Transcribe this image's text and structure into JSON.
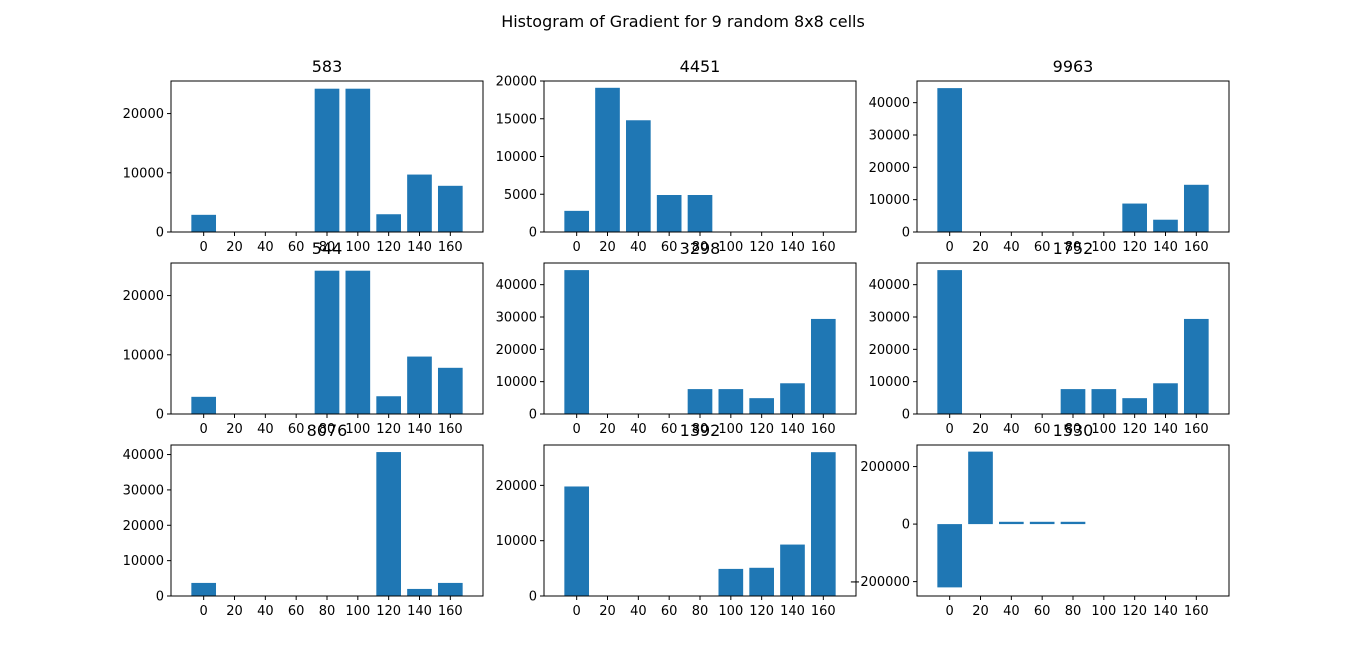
{
  "figure": {
    "title": "Histogram of Gradient for 9 random 8x8 cells",
    "bar_color": "#1f77b4"
  },
  "chart_data": [
    {
      "type": "bar",
      "title": "583",
      "categories": [
        "0",
        "20",
        "40",
        "60",
        "80",
        "100",
        "120",
        "140",
        "160"
      ],
      "x": [
        0,
        20,
        40,
        60,
        80,
        100,
        120,
        140,
        160
      ],
      "values": [
        2900,
        0,
        0,
        0,
        24200,
        24200,
        3000,
        9700,
        7800
      ],
      "ylim": [
        0,
        25500
      ],
      "yticks": [
        0,
        10000,
        20000
      ],
      "xticks": [
        0,
        20,
        40,
        60,
        80,
        100,
        120,
        140,
        160
      ],
      "xlabel": "",
      "ylabel": ""
    },
    {
      "type": "bar",
      "title": "4451",
      "categories": [
        "0",
        "20",
        "40",
        "60",
        "80",
        "100",
        "120",
        "140",
        "160"
      ],
      "x": [
        0,
        20,
        40,
        60,
        80,
        100,
        120,
        140,
        160
      ],
      "values": [
        2800,
        19100,
        14800,
        4900,
        4900,
        0,
        0,
        0,
        0
      ],
      "ylim": [
        0,
        20000
      ],
      "yticks": [
        0,
        5000,
        10000,
        15000,
        20000
      ],
      "xticks": [
        0,
        20,
        40,
        60,
        80,
        100,
        120,
        140,
        160
      ],
      "xlabel": "",
      "ylabel": ""
    },
    {
      "type": "bar",
      "title": "9963",
      "categories": [
        "0",
        "20",
        "40",
        "60",
        "80",
        "100",
        "120",
        "140",
        "160"
      ],
      "x": [
        0,
        20,
        40,
        60,
        80,
        100,
        120,
        140,
        160
      ],
      "values": [
        44500,
        0,
        0,
        0,
        0,
        0,
        8800,
        3800,
        14600
      ],
      "ylim": [
        0,
        46700
      ],
      "yticks": [
        0,
        10000,
        20000,
        30000,
        40000
      ],
      "xticks": [
        0,
        20,
        40,
        60,
        80,
        100,
        120,
        140,
        160
      ],
      "xlabel": "",
      "ylabel": ""
    },
    {
      "type": "bar",
      "title": "544",
      "categories": [
        "0",
        "20",
        "40",
        "60",
        "80",
        "100",
        "120",
        "140",
        "160"
      ],
      "x": [
        0,
        20,
        40,
        60,
        80,
        100,
        120,
        140,
        160
      ],
      "values": [
        2900,
        0,
        0,
        0,
        24200,
        24200,
        3000,
        9700,
        7800
      ],
      "ylim": [
        0,
        25500
      ],
      "yticks": [
        0,
        10000,
        20000
      ],
      "xticks": [
        0,
        20,
        40,
        60,
        80,
        100,
        120,
        140,
        160
      ],
      "xlabel": "",
      "ylabel": ""
    },
    {
      "type": "bar",
      "title": "3298",
      "categories": [
        "0",
        "20",
        "40",
        "60",
        "80",
        "100",
        "120",
        "140",
        "160"
      ],
      "x": [
        0,
        20,
        40,
        60,
        80,
        100,
        120,
        140,
        160
      ],
      "values": [
        44500,
        0,
        0,
        0,
        7700,
        7700,
        4900,
        9500,
        29400
      ],
      "ylim": [
        0,
        46700
      ],
      "yticks": [
        0,
        10000,
        20000,
        30000,
        40000
      ],
      "xticks": [
        0,
        20,
        40,
        60,
        80,
        100,
        120,
        140,
        160
      ],
      "xlabel": "",
      "ylabel": ""
    },
    {
      "type": "bar",
      "title": "1752",
      "categories": [
        "0",
        "20",
        "40",
        "60",
        "80",
        "100",
        "120",
        "140",
        "160"
      ],
      "x": [
        0,
        20,
        40,
        60,
        80,
        100,
        120,
        140,
        160
      ],
      "values": [
        44500,
        0,
        0,
        0,
        7700,
        7700,
        4900,
        9500,
        29400
      ],
      "ylim": [
        0,
        46700
      ],
      "yticks": [
        0,
        10000,
        20000,
        30000,
        40000
      ],
      "xticks": [
        0,
        20,
        40,
        60,
        80,
        100,
        120,
        140,
        160
      ],
      "xlabel": "",
      "ylabel": ""
    },
    {
      "type": "bar",
      "title": "8076",
      "categories": [
        "0",
        "20",
        "40",
        "60",
        "80",
        "100",
        "120",
        "140",
        "160"
      ],
      "x": [
        0,
        20,
        40,
        60,
        80,
        100,
        120,
        140,
        160
      ],
      "values": [
        3700,
        0,
        0,
        0,
        0,
        0,
        40700,
        2000,
        3700
      ],
      "ylim": [
        0,
        42700
      ],
      "yticks": [
        0,
        10000,
        20000,
        30000,
        40000
      ],
      "xticks": [
        0,
        20,
        40,
        60,
        80,
        100,
        120,
        140,
        160
      ],
      "xlabel": "",
      "ylabel": ""
    },
    {
      "type": "bar",
      "title": "1392",
      "categories": [
        "0",
        "20",
        "40",
        "60",
        "80",
        "100",
        "120",
        "140",
        "160"
      ],
      "x": [
        0,
        20,
        40,
        60,
        80,
        100,
        120,
        140,
        160
      ],
      "values": [
        19800,
        0,
        0,
        0,
        0,
        4900,
        5100,
        9300,
        26000
      ],
      "ylim": [
        0,
        27300
      ],
      "yticks": [
        0,
        10000,
        20000
      ],
      "xticks": [
        0,
        20,
        40,
        60,
        80,
        100,
        120,
        140,
        160
      ],
      "xlabel": "",
      "ylabel": ""
    },
    {
      "type": "bar",
      "title": "1530",
      "categories": [
        "0",
        "20",
        "40",
        "60",
        "80",
        "100",
        "120",
        "140",
        "160"
      ],
      "x": [
        0,
        20,
        40,
        60,
        80,
        100,
        120,
        140,
        160
      ],
      "values": [
        -220000,
        252000,
        8000,
        8000,
        8000,
        0,
        0,
        0,
        0
      ],
      "ylim": [
        -250000,
        275000
      ],
      "yticks": [
        -200000,
        0,
        200000
      ],
      "xticks": [
        0,
        20,
        40,
        60,
        80,
        100,
        120,
        140,
        160
      ],
      "xlabel": "",
      "ylabel": ""
    }
  ]
}
